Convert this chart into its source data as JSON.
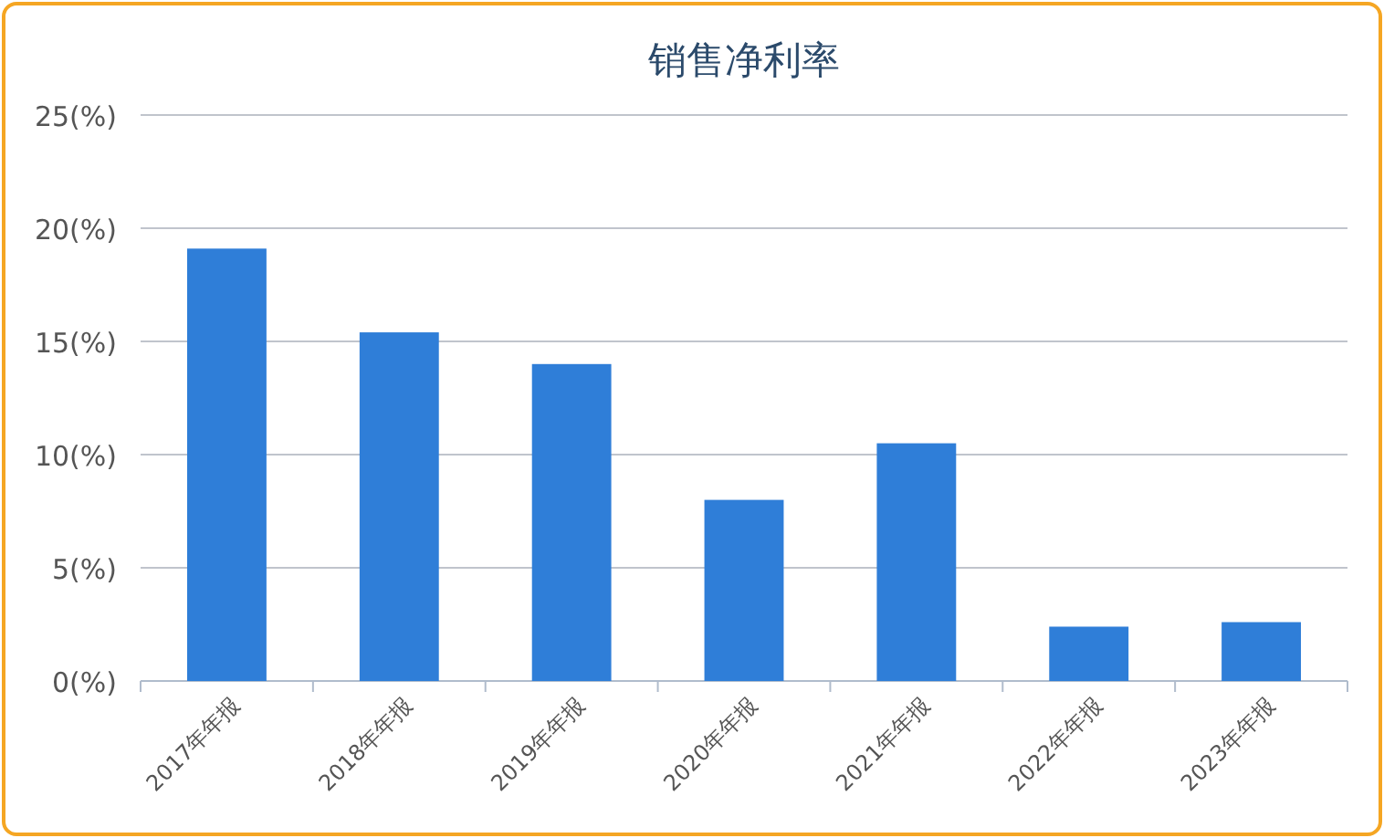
{
  "chart_data": {
    "type": "bar",
    "title": "销售净利率",
    "categories": [
      "2017年年报",
      "2018年年报",
      "2019年年报",
      "2020年年报",
      "2021年年报",
      "2022年年报",
      "2023年年报"
    ],
    "values": [
      19.1,
      15.4,
      14.0,
      8.0,
      10.5,
      2.4,
      2.6
    ],
    "color": "#2f7ed8",
    "ylim": [
      0,
      25
    ],
    "yticks": [
      {
        "value": 0,
        "label": "0(%)"
      },
      {
        "value": 5,
        "label": "5(%)"
      },
      {
        "value": 10,
        "label": "10(%)"
      },
      {
        "value": 15,
        "label": "15(%)"
      },
      {
        "value": 20,
        "label": "20(%)"
      },
      {
        "value": 25,
        "label": "25(%)"
      }
    ],
    "grid": "y"
  }
}
